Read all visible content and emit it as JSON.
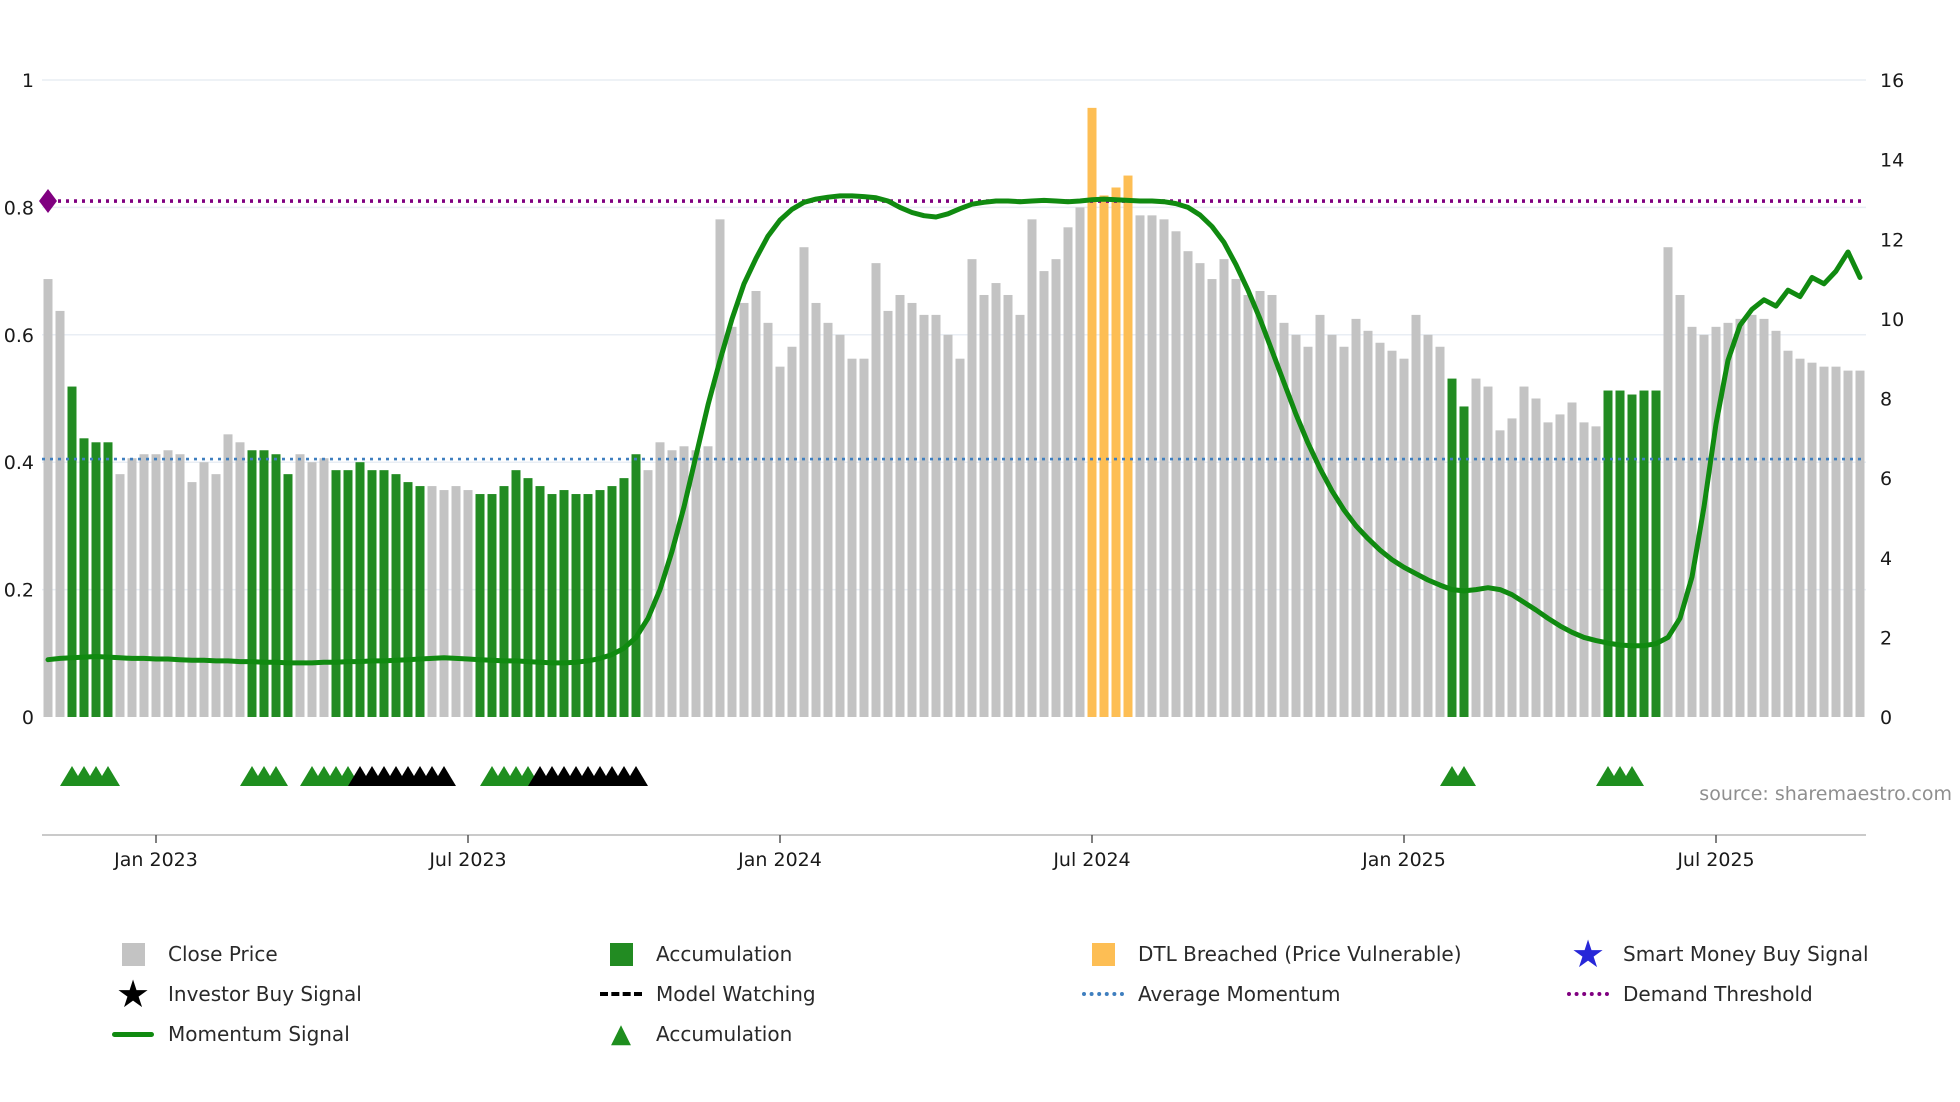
{
  "source_text": "source: sharemaestro.com",
  "colors": {
    "bar_gray": "#c3c3c3",
    "bar_green": "#228b22",
    "bar_orange": "#fdbe54",
    "momentum_line": "#108a10",
    "avg_momentum_line": "#3f7fbf",
    "threshold_line": "#800080",
    "marker_green": "#1e8e1e",
    "marker_black": "#000000",
    "smart_money_blue": "#2727d8",
    "grid": "#e9eef4",
    "spine": "#b8b8b8",
    "axis_text": "#1a1a1a"
  },
  "chart_data": {
    "type": "bar+line",
    "title": "",
    "n_bars": 152,
    "x_tick_labels": [
      "Jan 2023",
      "Jul 2023",
      "Jan 2024",
      "Jul 2024",
      "Jan 2025",
      "Jul 2025"
    ],
    "x_tick_bar_index": [
      9,
      35,
      61,
      87,
      113,
      139
    ],
    "left_axis": {
      "min": 0,
      "max": 1,
      "ticks": [
        "0",
        "0.2",
        "0.4",
        "0.6",
        "0.8",
        "1"
      ]
    },
    "right_axis": {
      "min": 0,
      "max": 16,
      "ticks": [
        "0",
        "2",
        "4",
        "6",
        "8",
        "10",
        "12",
        "14",
        "16"
      ]
    },
    "close_price_bars": [
      11.0,
      10.2,
      8.3,
      7.0,
      6.9,
      6.9,
      6.1,
      6.5,
      6.6,
      6.6,
      6.7,
      6.6,
      5.9,
      6.4,
      6.1,
      7.1,
      6.9,
      6.7,
      6.7,
      6.6,
      6.1,
      6.6,
      6.4,
      6.5,
      6.2,
      6.2,
      6.4,
      6.2,
      6.2,
      6.1,
      5.9,
      5.8,
      5.8,
      5.7,
      5.8,
      5.7,
      5.6,
      5.6,
      5.8,
      6.2,
      6.0,
      5.8,
      5.6,
      5.7,
      5.6,
      5.6,
      5.7,
      5.8,
      6.0,
      6.6,
      6.2,
      6.9,
      6.7,
      6.8,
      6.7,
      6.8,
      12.5,
      9.8,
      10.4,
      10.7,
      9.9,
      8.8,
      9.3,
      11.8,
      10.4,
      9.9,
      9.6,
      9.0,
      9.0,
      11.4,
      10.2,
      10.6,
      10.4,
      10.1,
      10.1,
      9.6,
      9.0,
      11.5,
      10.6,
      10.9,
      10.6,
      10.1,
      12.5,
      11.2,
      11.5,
      12.3,
      12.8,
      15.3,
      13.1,
      13.3,
      13.6,
      12.6,
      12.6,
      12.5,
      12.2,
      11.7,
      11.4,
      11.0,
      11.5,
      11.0,
      10.6,
      10.7,
      10.6,
      9.9,
      9.6,
      9.3,
      10.1,
      9.6,
      9.3,
      10.0,
      9.7,
      9.4,
      9.2,
      9.0,
      10.1,
      9.6,
      9.3,
      8.5,
      7.8,
      8.5,
      8.3,
      7.2,
      7.5,
      8.3,
      8.0,
      7.4,
      7.6,
      7.9,
      7.4,
      7.3,
      8.2,
      8.2,
      8.1,
      8.2,
      8.2,
      11.8,
      10.6,
      9.8,
      9.6,
      9.8,
      9.9,
      10.0,
      10.1,
      10.0,
      9.7,
      9.2,
      9.0,
      8.9,
      8.8,
      8.8,
      8.7,
      8.7
    ],
    "bar_color_runs": [
      [
        2,
        "gray"
      ],
      [
        4,
        "green"
      ],
      [
        11,
        "gray"
      ],
      [
        4,
        "green"
      ],
      [
        3,
        "gray"
      ],
      [
        8,
        "green"
      ],
      [
        4,
        "gray"
      ],
      [
        14,
        "green"
      ],
      [
        37,
        "gray"
      ],
      [
        4,
        "orange"
      ],
      [
        26,
        "gray"
      ],
      [
        2,
        "green"
      ],
      [
        11,
        "gray"
      ],
      [
        5,
        "green"
      ],
      [
        17,
        "gray"
      ]
    ],
    "momentum_signal": [
      0.09,
      0.092,
      0.093,
      0.094,
      0.095,
      0.094,
      0.093,
      0.092,
      0.092,
      0.091,
      0.091,
      0.09,
      0.089,
      0.089,
      0.088,
      0.088,
      0.087,
      0.087,
      0.086,
      0.086,
      0.085,
      0.085,
      0.085,
      0.086,
      0.086,
      0.087,
      0.087,
      0.088,
      0.088,
      0.089,
      0.09,
      0.091,
      0.092,
      0.093,
      0.092,
      0.091,
      0.09,
      0.089,
      0.088,
      0.088,
      0.087,
      0.086,
      0.085,
      0.085,
      0.086,
      0.088,
      0.092,
      0.098,
      0.108,
      0.125,
      0.155,
      0.2,
      0.26,
      0.33,
      0.41,
      0.49,
      0.56,
      0.625,
      0.68,
      0.72,
      0.755,
      0.78,
      0.797,
      0.808,
      0.813,
      0.816,
      0.818,
      0.818,
      0.817,
      0.815,
      0.81,
      0.8,
      0.792,
      0.787,
      0.785,
      0.79,
      0.798,
      0.805,
      0.808,
      0.81,
      0.81,
      0.809,
      0.81,
      0.811,
      0.81,
      0.809,
      0.81,
      0.812,
      0.813,
      0.812,
      0.811,
      0.81,
      0.81,
      0.809,
      0.806,
      0.8,
      0.788,
      0.77,
      0.745,
      0.71,
      0.67,
      0.625,
      0.575,
      0.525,
      0.475,
      0.43,
      0.39,
      0.355,
      0.325,
      0.3,
      0.28,
      0.262,
      0.247,
      0.235,
      0.225,
      0.215,
      0.207,
      0.2,
      0.198,
      0.2,
      0.203,
      0.2,
      0.192,
      0.18,
      0.168,
      0.155,
      0.143,
      0.133,
      0.125,
      0.12,
      0.116,
      0.113,
      0.112,
      0.112,
      0.115,
      0.125,
      0.155,
      0.22,
      0.33,
      0.46,
      0.56,
      0.615,
      0.64,
      0.655,
      0.645,
      0.67,
      0.66,
      0.69,
      0.68,
      0.7,
      0.73,
      0.69
    ],
    "average_momentum": 0.405,
    "demand_threshold": 0.81,
    "accumulation_marker_indices": [
      2,
      3,
      4,
      5,
      17,
      18,
      19,
      22,
      23,
      24,
      25,
      37,
      38,
      39,
      40,
      117,
      118,
      130,
      131,
      132
    ],
    "investor_buy_marker_indices": [
      26,
      27,
      28,
      29,
      30,
      31,
      32,
      33,
      41,
      42,
      43,
      44,
      45,
      46,
      47,
      48,
      49
    ]
  },
  "legend": {
    "columns": [
      [
        {
          "icon": "square-gray",
          "label": "Close Price"
        },
        {
          "icon": "star-black",
          "label": "Investor Buy Signal"
        },
        {
          "icon": "line-green",
          "label": "Momentum Signal"
        }
      ],
      [
        {
          "icon": "square-green",
          "label": "Accumulation"
        },
        {
          "icon": "dash-black",
          "label": "Model Watching"
        },
        {
          "icon": "triangle-green",
          "label": "Accumulation"
        }
      ],
      [
        {
          "icon": "square-orange",
          "label": "DTL Breached (Price Vulnerable)"
        },
        {
          "icon": "dotted-blue",
          "label": "Average Momentum"
        }
      ],
      [
        {
          "icon": "star-blue",
          "label": "Smart Money Buy Signal"
        },
        {
          "icon": "dotted-purple",
          "label": "Demand Threshold"
        }
      ]
    ]
  }
}
